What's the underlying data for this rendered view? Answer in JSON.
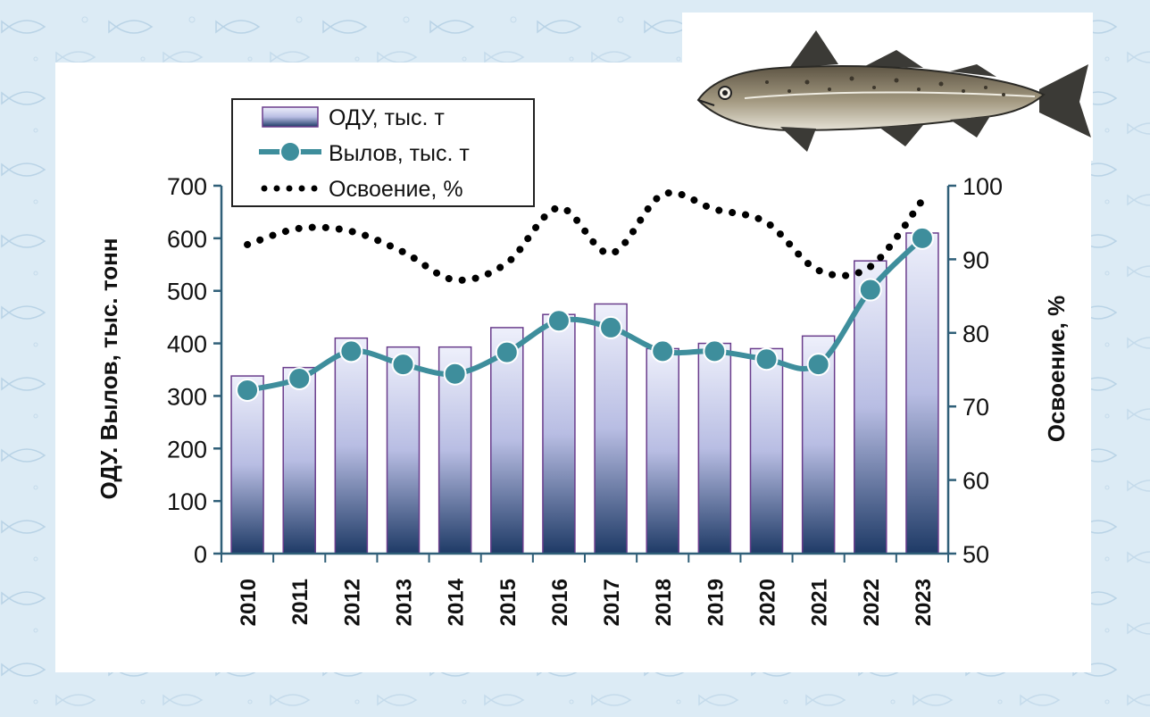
{
  "chart_data": {
    "type": "bar",
    "categories": [
      "2010",
      "2011",
      "2012",
      "2013",
      "2014",
      "2015",
      "2016",
      "2017",
      "2018",
      "2019",
      "2020",
      "2021",
      "2022",
      "2023"
    ],
    "series": [
      {
        "name": "ОДУ, тыс. т",
        "type": "bar",
        "axis": "left",
        "values": [
          338,
          354,
          410,
          393,
          393,
          430,
          455,
          475,
          390,
          400,
          390,
          414,
          557,
          610
        ]
      },
      {
        "name": "Вылов, тыс. т",
        "type": "line",
        "axis": "left",
        "values": [
          311,
          333,
          385,
          360,
          342,
          383,
          443,
          430,
          385,
          385,
          370,
          360,
          502,
          600
        ]
      },
      {
        "name": "Освоение, %",
        "type": "dotted-line",
        "axis": "right",
        "values": [
          92,
          94.2,
          93.8,
          91,
          87.2,
          89.5,
          97,
          90.8,
          98.8,
          96.8,
          95,
          88.5,
          89,
          98
        ]
      }
    ],
    "ylabel": "ОДУ. Вылов, тыс. тонн",
    "ylabel_right": "Освоение, %",
    "ylim": [
      0,
      700
    ],
    "ylim_right": [
      50,
      100
    ],
    "yticks": [
      0,
      100,
      200,
      300,
      400,
      500,
      600,
      700
    ],
    "yticks_right": [
      50,
      60,
      70,
      80,
      90,
      100
    ],
    "legend_placement": "top-left",
    "grid": false,
    "colors": {
      "bar_top": "#eef0fb",
      "bar_mid": "#b8bde3",
      "bar_bottom": "#1e3a66",
      "bar_edge": "#6a3d8c",
      "line": "#3e8e9c",
      "dots": "#000000",
      "axis": "#2f5f78"
    }
  },
  "decor": {
    "fish_icon": "cod-fish-icon"
  }
}
